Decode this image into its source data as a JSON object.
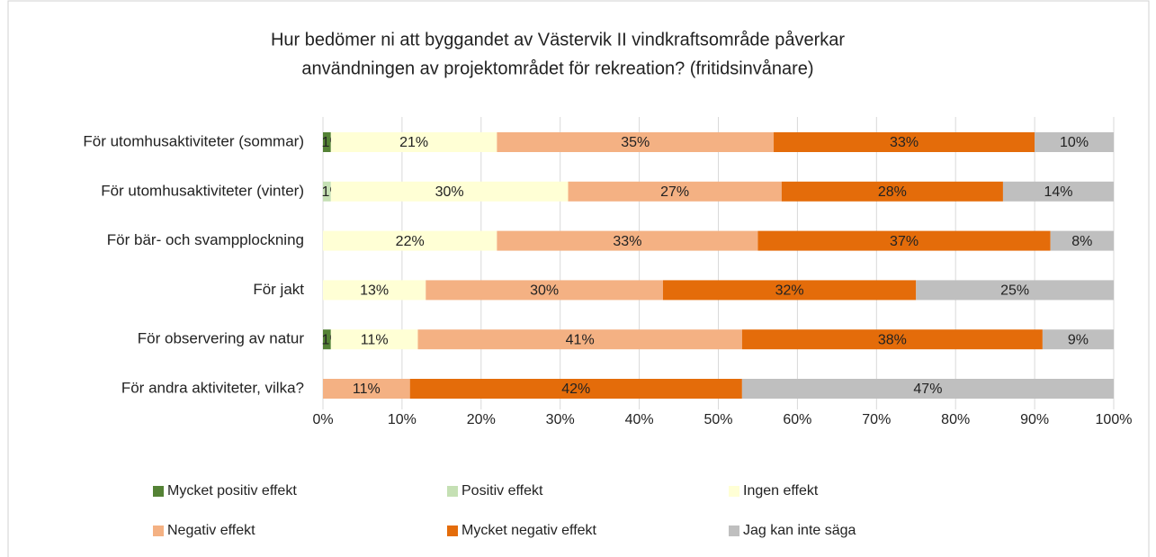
{
  "chart_data": {
    "type": "stacked-bar-horizontal",
    "title": [
      "Hur bedömer ni att byggandet av Västervik II vindkraftsområde påverkar",
      "användningen av projektområdet för rekreation? (fritidsinvånare)"
    ],
    "categories": [
      "För utomhusaktiviteter (sommar)",
      "För utomhusaktiviteter (vinter)",
      "För bär- och svampplockning",
      "För jakt",
      "För observering av natur",
      "För andra aktiviteter, vilka?"
    ],
    "series": [
      {
        "name": "Mycket positiv effekt",
        "color": "#548235",
        "values": [
          1,
          0,
          0,
          0,
          1,
          0
        ],
        "value_labels": [
          "1%",
          null,
          null,
          null,
          "1%",
          null
        ]
      },
      {
        "name": "Positiv effekt",
        "color": "#c5e0b4",
        "values": [
          0,
          1,
          0,
          0,
          0,
          0
        ],
        "value_labels": [
          null,
          "1%",
          null,
          null,
          null,
          null
        ]
      },
      {
        "name": "Ingen effekt",
        "color": "#ffffd5",
        "values": [
          21,
          30,
          22,
          13,
          11,
          0
        ],
        "value_labels": [
          "21%",
          "30%",
          "22%",
          "13%",
          "11%",
          null
        ]
      },
      {
        "name": "Negativ effekt",
        "color": "#f4b183",
        "values": [
          35,
          27,
          33,
          30,
          41,
          11
        ],
        "value_labels": [
          "35%",
          "27%",
          "33%",
          "30%",
          "41%",
          "11%"
        ]
      },
      {
        "name": "Mycket negativ effekt",
        "color": "#e46c0a",
        "values": [
          33,
          28,
          37,
          32,
          38,
          42
        ],
        "value_labels": [
          "33%",
          "28%",
          "37%",
          "32%",
          "38%",
          "42%"
        ]
      },
      {
        "name": "Jag kan inte säga",
        "color": "#bfbfbf",
        "values": [
          10,
          14,
          8,
          25,
          9,
          47
        ],
        "value_labels": [
          "10%",
          "14%",
          "8%",
          "25%",
          "9%",
          "47%"
        ]
      }
    ],
    "xlim": [
      0,
      100
    ],
    "xticks": [
      {
        "value": 0,
        "label": "0%"
      },
      {
        "value": 10,
        "label": "10%"
      },
      {
        "value": 20,
        "label": "20%"
      },
      {
        "value": 30,
        "label": "30%"
      },
      {
        "value": 40,
        "label": "40%"
      },
      {
        "value": 50,
        "label": "50%"
      },
      {
        "value": 60,
        "label": "60%"
      },
      {
        "value": 70,
        "label": "70%"
      },
      {
        "value": 80,
        "label": "80%"
      },
      {
        "value": 90,
        "label": "90%"
      },
      {
        "value": 100,
        "label": "100%"
      }
    ],
    "grid": true
  }
}
